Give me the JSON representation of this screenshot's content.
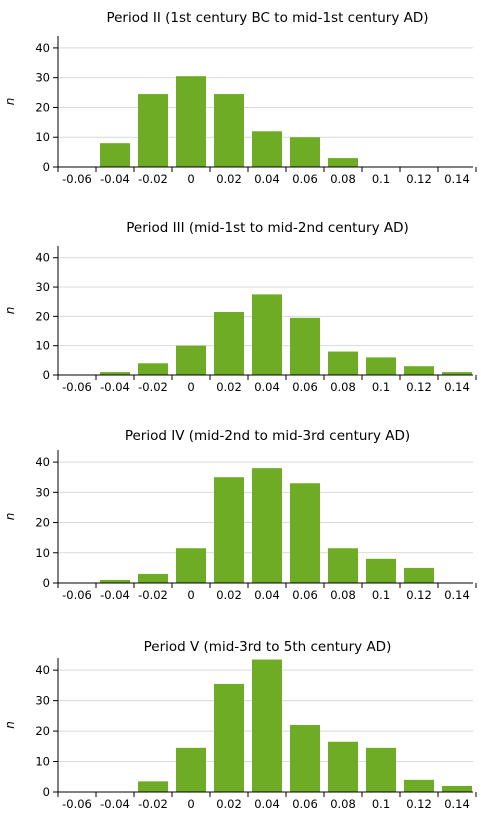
{
  "colors": {
    "bar": "#6fac26",
    "grid": "#d9d9d9",
    "axis": "#000000"
  },
  "chart_data": [
    {
      "type": "bar",
      "title": "Period II (1st century BC to mid-1st century AD)",
      "ylabel": "n",
      "xlabel": "",
      "ylim": [
        0,
        44
      ],
      "grid": "horizontal",
      "categories": [
        "-0.06",
        "-0.04",
        "-0.02",
        "0",
        "0.02",
        "0.04",
        "0.06",
        "0.08",
        "0.1",
        "0.12",
        "0.14"
      ],
      "y_ticks": [
        "0",
        "10",
        "20",
        "30",
        "40"
      ],
      "values": [
        0,
        8,
        24.5,
        30.5,
        24.5,
        12,
        10,
        3,
        0,
        0,
        0
      ]
    },
    {
      "type": "bar",
      "title": "Period III (mid-1st to mid-2nd century AD)",
      "ylabel": "n",
      "xlabel": "",
      "ylim": [
        0,
        44
      ],
      "grid": "horizontal",
      "categories": [
        "-0.06",
        "-0.04",
        "-0.02",
        "0",
        "0.02",
        "0.04",
        "0.06",
        "0.08",
        "0.1",
        "0.12",
        "0.14"
      ],
      "y_ticks": [
        "0",
        "10",
        "20",
        "30",
        "40"
      ],
      "values": [
        0,
        1,
        4,
        10,
        21.5,
        27.5,
        19.5,
        8,
        6,
        3,
        1
      ]
    },
    {
      "type": "bar",
      "title": "Period IV (mid-2nd to mid-3rd century AD)",
      "ylabel": "n",
      "xlabel": "",
      "ylim": [
        0,
        44
      ],
      "grid": "horizontal",
      "categories": [
        "-0.06",
        "-0.04",
        "-0.02",
        "0",
        "0.02",
        "0.04",
        "0.06",
        "0.08",
        "0.1",
        "0.12",
        "0.14"
      ],
      "y_ticks": [
        "0",
        "10",
        "20",
        "30",
        "40"
      ],
      "values": [
        0,
        1,
        3,
        11.5,
        35,
        38,
        33,
        11.5,
        8,
        5,
        0
      ]
    },
    {
      "type": "bar",
      "title": "Period V (mid-3rd to 5th century AD)",
      "ylabel": "n",
      "xlabel": "",
      "ylim": [
        0,
        44
      ],
      "grid": "horizontal",
      "categories": [
        "-0.06",
        "-0.04",
        "-0.02",
        "0",
        "0.02",
        "0.04",
        "0.06",
        "0.08",
        "0.1",
        "0.12",
        "0.14"
      ],
      "y_ticks": [
        "0",
        "10",
        "20",
        "30",
        "40"
      ],
      "values": [
        0,
        0,
        3.5,
        14.5,
        35.5,
        43.5,
        22,
        16.5,
        14.5,
        4,
        2
      ]
    }
  ]
}
